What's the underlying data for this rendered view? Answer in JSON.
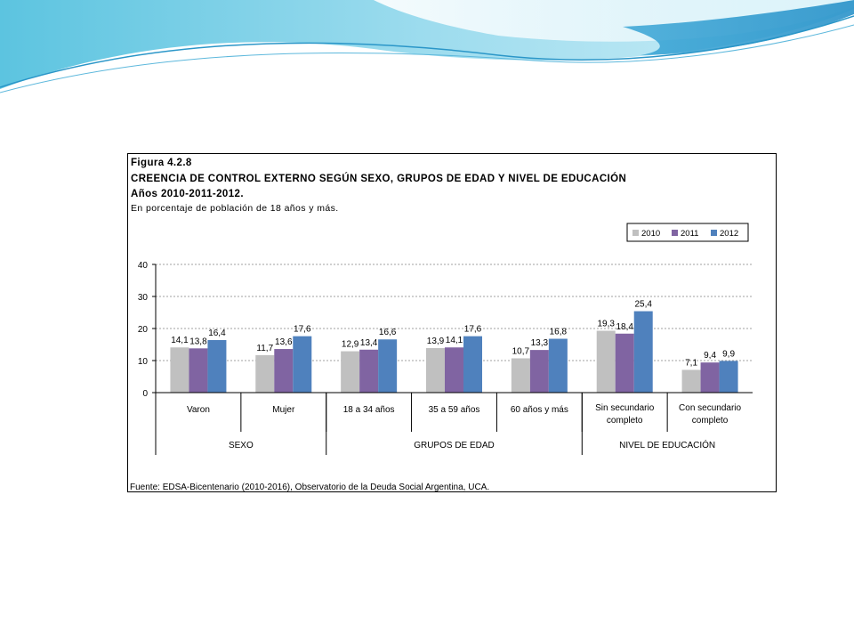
{
  "figure": {
    "number": "Figura 4.2.8",
    "title": "CREENCIA DE CONTROL EXTERNO SEGÚN SEXO, GRUPOS DE EDAD Y NIVEL DE EDUCACIÓN",
    "years": "Años 2010-2011-2012.",
    "subtitle": "En porcentaje de población de 18 años y más.",
    "source": "Fuente: EDSA-Bicentenario (2010-2016), Observatorio de la Deuda Social Argentina, UCA."
  },
  "colors": {
    "series": [
      "#c0c0c0",
      "#8064a2",
      "#4f81bd"
    ],
    "banner_light": "#b8e6f0",
    "banner_mid": "#7cc8e4",
    "banner_dark": "#3fa8d8"
  },
  "chart_data": {
    "type": "bar",
    "categories": [
      "Varon",
      "Mujer",
      "18 a 34 años",
      "35 a 59 años",
      "60 años y más",
      "Sin secundario completo",
      "Con secundario completo"
    ],
    "category_lines": [
      [
        "Varon"
      ],
      [
        "Mujer"
      ],
      [
        "18 a 34 años"
      ],
      [
        "35 a 59 años"
      ],
      [
        "60 años y más"
      ],
      [
        "Sin secundario",
        "completo"
      ],
      [
        "Con secundario",
        "completo"
      ]
    ],
    "groups": [
      {
        "label": "SEXO",
        "count": 2
      },
      {
        "label": "GRUPOS DE EDAD",
        "count": 3
      },
      {
        "label": "NIVEL DE EDUCACIÓN",
        "count": 2
      }
    ],
    "series": [
      {
        "name": "2010",
        "values": [
          14.1,
          11.7,
          12.9,
          13.9,
          10.7,
          19.3,
          7.1
        ],
        "labels": [
          "14,1",
          "11,7",
          "12,9",
          "13,9",
          "10,7",
          "19,3",
          "7,1"
        ]
      },
      {
        "name": "2011",
        "values": [
          13.8,
          13.6,
          13.4,
          14.1,
          13.3,
          18.4,
          9.4
        ],
        "labels": [
          "13,8",
          "13,6",
          "13,4",
          "14,1",
          "13,3",
          "18,4",
          "9,4"
        ]
      },
      {
        "name": "2012",
        "values": [
          16.4,
          17.6,
          16.6,
          17.6,
          16.8,
          25.4,
          9.9
        ],
        "labels": [
          "16,4",
          "17,6",
          "16,6",
          "17,6",
          "16,8",
          "25,4",
          "9,9"
        ]
      }
    ],
    "ylim": [
      0,
      40
    ],
    "yticks": [
      0,
      10,
      20,
      30,
      40
    ],
    "grid": true,
    "legend": "top-right"
  }
}
